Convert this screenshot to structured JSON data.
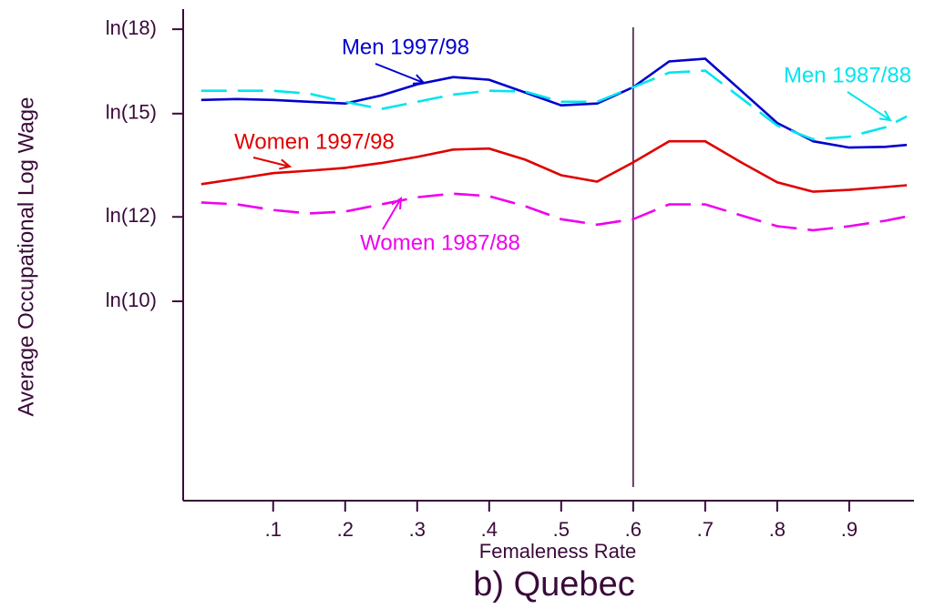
{
  "chart_data": {
    "type": "line",
    "title": "b) Quebec",
    "x_label": "Femaleness Rate",
    "y_label": "Average Occupational Log Wage",
    "log_y": true,
    "x": [
      0,
      0.05,
      0.1,
      0.15,
      0.2,
      0.25,
      0.3,
      0.35,
      0.4,
      0.45,
      0.5,
      0.55,
      0.6,
      0.65,
      0.7,
      0.75,
      0.8,
      0.85,
      0.9,
      0.95,
      0.98
    ],
    "series": [
      {
        "name": "Men 1997/98",
        "color": "#0000cc",
        "dashed": false,
        "values": [
          15.45,
          15.48,
          15.45,
          15.39,
          15.33,
          15.6,
          15.98,
          16.23,
          16.14,
          15.7,
          15.27,
          15.33,
          15.88,
          16.79,
          16.89,
          15.76,
          14.7,
          14.13,
          13.94,
          13.96,
          14.02
        ]
      },
      {
        "name": "Men 1987/88",
        "color": "#00e5ee",
        "dashed": true,
        "values": [
          15.76,
          15.76,
          15.76,
          15.66,
          15.39,
          15.15,
          15.39,
          15.63,
          15.76,
          15.73,
          15.39,
          15.39,
          15.88,
          16.39,
          16.46,
          15.51,
          14.62,
          14.19,
          14.27,
          14.56,
          14.91
        ]
      },
      {
        "name": "Women 1997/98",
        "color": "#e00000",
        "dashed": false,
        "values": [
          12.88,
          13.03,
          13.19,
          13.26,
          13.34,
          13.48,
          13.66,
          13.88,
          13.91,
          13.58,
          13.13,
          12.95,
          13.5,
          14.13,
          14.13,
          13.5,
          12.93,
          12.67,
          12.72,
          12.8,
          12.85
        ]
      },
      {
        "name": "Women 1987/88",
        "color": "#ee00ee",
        "dashed": true,
        "values": [
          12.38,
          12.33,
          12.18,
          12.09,
          12.14,
          12.33,
          12.52,
          12.62,
          12.55,
          12.28,
          11.94,
          11.8,
          11.94,
          12.33,
          12.33,
          12.04,
          11.76,
          11.66,
          11.76,
          11.9,
          12.01
        ]
      }
    ],
    "vline": 0.6,
    "xlim": [
      -0.025,
      0.99
    ],
    "ylim": [
      6.5,
      18.8
    ],
    "xticks": [
      {
        "value": 0.1,
        "label": ".1"
      },
      {
        "value": 0.2,
        "label": ".2"
      },
      {
        "value": 0.3,
        "label": ".3"
      },
      {
        "value": 0.4,
        "label": ".4"
      },
      {
        "value": 0.5,
        "label": ".5"
      },
      {
        "value": 0.6,
        "label": ".6"
      },
      {
        "value": 0.7,
        "label": ".7"
      },
      {
        "value": 0.8,
        "label": ".8"
      },
      {
        "value": 0.9,
        "label": ".9"
      }
    ],
    "yticks": [
      {
        "value": 18,
        "label": "ln(18)"
      },
      {
        "value": 15,
        "label": "ln(15)"
      },
      {
        "value": 12,
        "label": "ln(12)"
      },
      {
        "value": 10,
        "label": "ln(10)"
      }
    ]
  }
}
